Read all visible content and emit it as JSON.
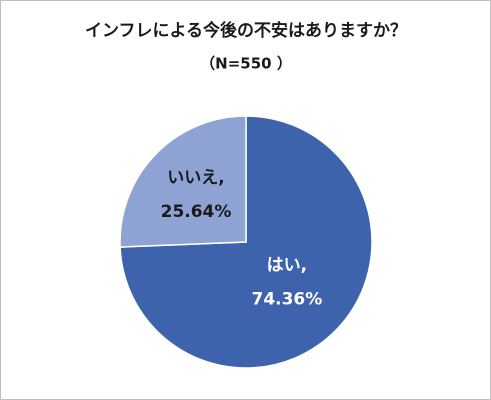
{
  "chart_data": {
    "type": "pie",
    "title": "インフレによる今後の不安はありますか？",
    "subtitle": "（N=550 ）",
    "categories": [
      "はい,",
      "いいえ,"
    ],
    "values": [
      74.36,
      25.64
    ],
    "value_labels": [
      "74.36%",
      "25.64%"
    ],
    "colors": [
      "#3e63ad",
      "#8ea3d4"
    ],
    "label_colors": [
      "#ffffff",
      "#1a1a1a"
    ]
  }
}
